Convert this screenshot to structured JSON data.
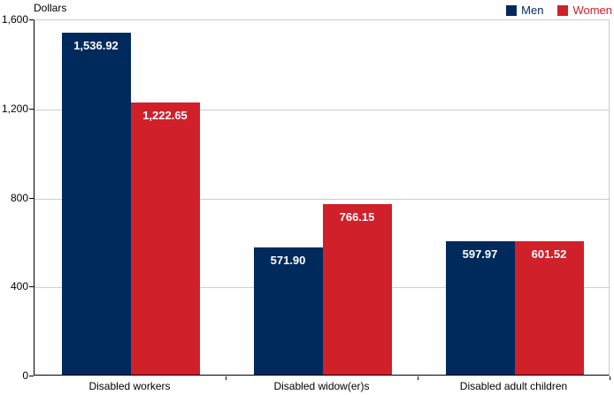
{
  "chart_data": {
    "type": "bar",
    "title": "",
    "ylabel": "Dollars",
    "xlabel": "",
    "categories": [
      "Disabled workers",
      "Disabled widow(er)s",
      "Disabled adult children"
    ],
    "series": [
      {
        "name": "Men",
        "color": "#002A5C",
        "values": [
          1536.92,
          571.9,
          597.97
        ],
        "value_labels": [
          "1,536.92",
          "571.90",
          "597.97"
        ]
      },
      {
        "name": "Women",
        "color": "#D0202A",
        "values": [
          1222.65,
          766.15,
          601.52
        ],
        "value_labels": [
          "1,222.65",
          "766.15",
          "601.52"
        ]
      }
    ],
    "ylim": [
      0,
      1600
    ],
    "yticks": [
      0,
      400,
      800,
      1200,
      1600
    ],
    "ytick_labels": [
      "0",
      "400",
      "800",
      "1,200",
      "1,600"
    ],
    "grid": true,
    "legend_position": "top-right",
    "colors": {
      "grid": "#CCCCCC",
      "axis": "#000000",
      "plot_border": "#CCCCCC",
      "value_label_text": "#FFFFFF",
      "background": "#FFFFFF"
    }
  }
}
